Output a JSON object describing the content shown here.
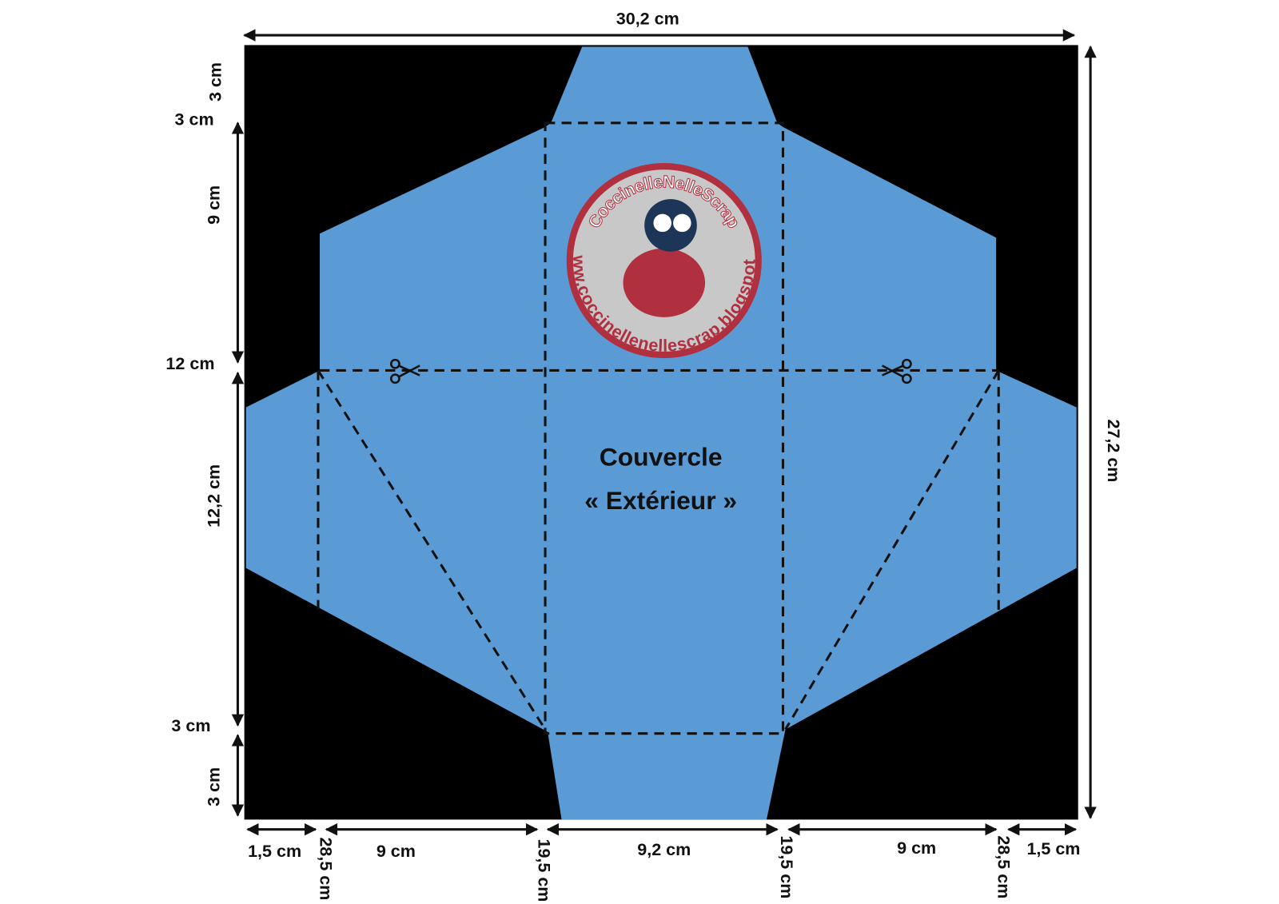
{
  "dimensions": {
    "top": "30,2 cm",
    "right": "27,2 cm",
    "left": [
      "3 cm",
      "3 cm",
      "9 cm",
      "12 cm",
      "12,2 cm",
      "3 cm",
      "3 cm"
    ],
    "bottom": [
      "1,5 cm",
      "28,5 cm",
      "9 cm",
      "19,5 cm",
      "9,2 cm",
      "19,5 cm",
      "9 cm",
      "28,5 cm",
      "1,5 cm"
    ]
  },
  "title": [
    "Couvercle",
    "« Extérieur »"
  ],
  "logo": {
    "name": "CoccinelleNelleScrap",
    "url": "www.coccinellenellescrap.blogspot.fr"
  }
}
